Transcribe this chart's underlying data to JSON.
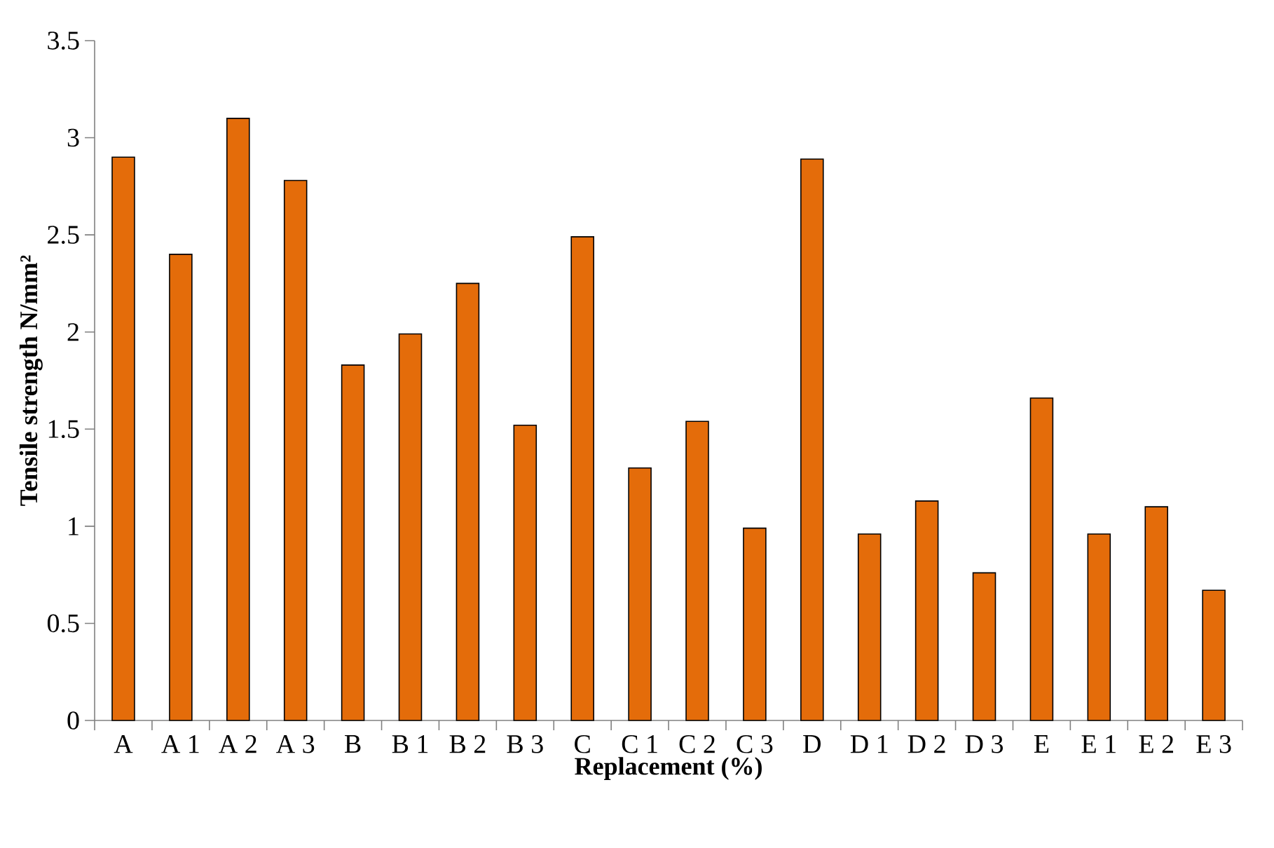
{
  "chart_data": {
    "type": "bar",
    "xlabel": "Replacement (%)",
    "ylabel": "Tensile strength N/mm²",
    "categories": [
      "A",
      "A 1",
      "A 2",
      "A 3",
      "B",
      "B 1",
      "B 2",
      "B 3",
      "C",
      "C 1",
      "C 2",
      "C 3",
      "D",
      "D 1",
      "D 2",
      "D 3",
      "E",
      "E 1",
      "E 2",
      "E 3"
    ],
    "values": [
      2.9,
      2.4,
      3.1,
      2.78,
      1.83,
      1.99,
      2.25,
      1.52,
      2.49,
      1.3,
      1.54,
      0.99,
      2.89,
      0.96,
      1.13,
      0.76,
      1.66,
      0.96,
      1.1,
      0.67
    ],
    "color": "#e46c0a",
    "ylim": [
      0,
      3.5
    ],
    "yticks": [
      0,
      0.5,
      1,
      1.5,
      2,
      2.5,
      3,
      3.5
    ]
  }
}
